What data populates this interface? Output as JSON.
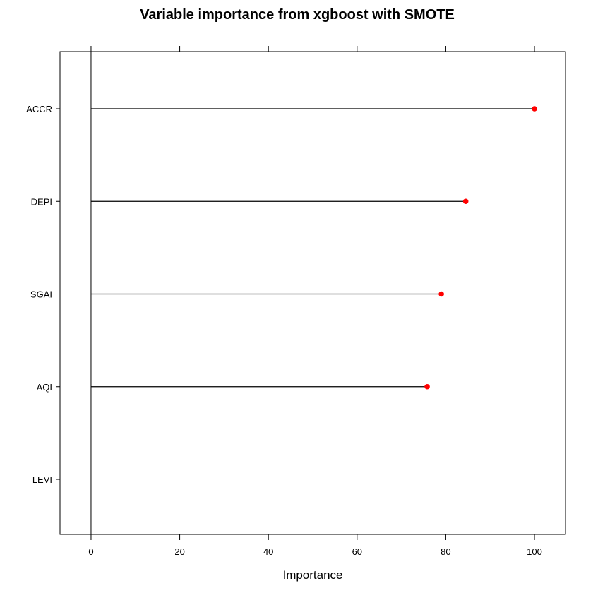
{
  "chart_data": {
    "type": "lollipop",
    "title": "Variable importance from xgboost with SMOTE",
    "xlabel": "Importance",
    "ylabel": "",
    "xlim": [
      -7,
      107
    ],
    "xticks": [
      0,
      20,
      40,
      60,
      80,
      100
    ],
    "categories": [
      "ACCR",
      "DEPI",
      "SGAI",
      "AQI",
      "LEVI"
    ],
    "values": [
      100,
      84.5,
      79,
      75.8,
      0
    ],
    "point_color": "#ff0000",
    "line_color": "#000000",
    "grid": false
  }
}
